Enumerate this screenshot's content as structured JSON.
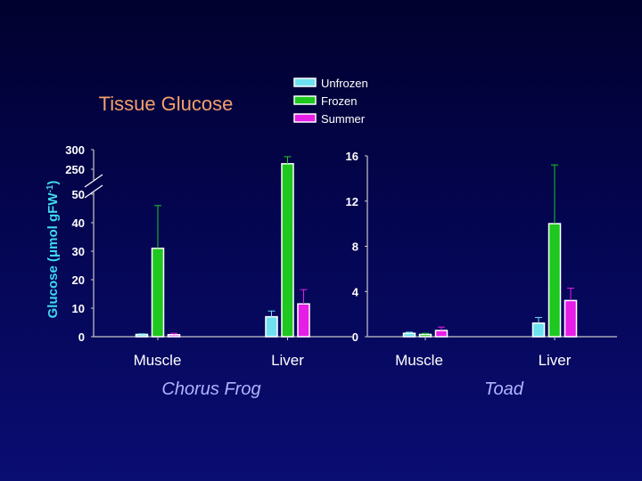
{
  "title": "Tissue Glucose",
  "y_axis_label": "Glucose (μmol gFW-1)",
  "y_axis_label_main": "Glucose (",
  "y_axis_label_mu": "μ",
  "y_axis_label_unit": "mol gFW",
  "y_axis_label_sup": "-1",
  "y_axis_label_close": ")",
  "colors": {
    "Unfrozen": "#6fe0f0",
    "Frozen": "#1ec81e",
    "Summer": "#e61ee6"
  },
  "legend": [
    "Unfrozen",
    "Frozen",
    "Summer"
  ],
  "chart_data": [
    {
      "type": "bar",
      "species": "Chorus Frog",
      "categories": [
        "Muscle",
        "Liver"
      ],
      "series": [
        {
          "name": "Unfrozen",
          "values": [
            0.8,
            7.0
          ],
          "errors": [
            0.2,
            2.0
          ]
        },
        {
          "name": "Frozen",
          "values": [
            31,
            264
          ],
          "errors": [
            15,
            18
          ]
        },
        {
          "name": "Summer",
          "values": [
            0.7,
            11.5
          ],
          "errors": [
            0.5,
            5.0
          ]
        }
      ],
      "y_ticks": [
        "0",
        "10",
        "20",
        "30",
        "40",
        "50",
        "250",
        "300"
      ],
      "ylim": [
        0,
        300
      ],
      "axis_break": [
        50,
        250
      ]
    },
    {
      "type": "bar",
      "species": "Toad",
      "categories": [
        "Muscle",
        "Liver"
      ],
      "series": [
        {
          "name": "Unfrozen",
          "values": [
            0.3,
            1.2
          ],
          "errors": [
            0.1,
            0.5
          ]
        },
        {
          "name": "Frozen",
          "values": [
            0.2,
            10.0
          ],
          "errors": [
            0.1,
            5.2
          ]
        },
        {
          "name": "Summer",
          "values": [
            0.55,
            3.2
          ],
          "errors": [
            0.3,
            1.1
          ]
        }
      ],
      "y_ticks": [
        "0",
        "4",
        "8",
        "12",
        "16"
      ],
      "ylim": [
        0,
        16
      ]
    }
  ]
}
